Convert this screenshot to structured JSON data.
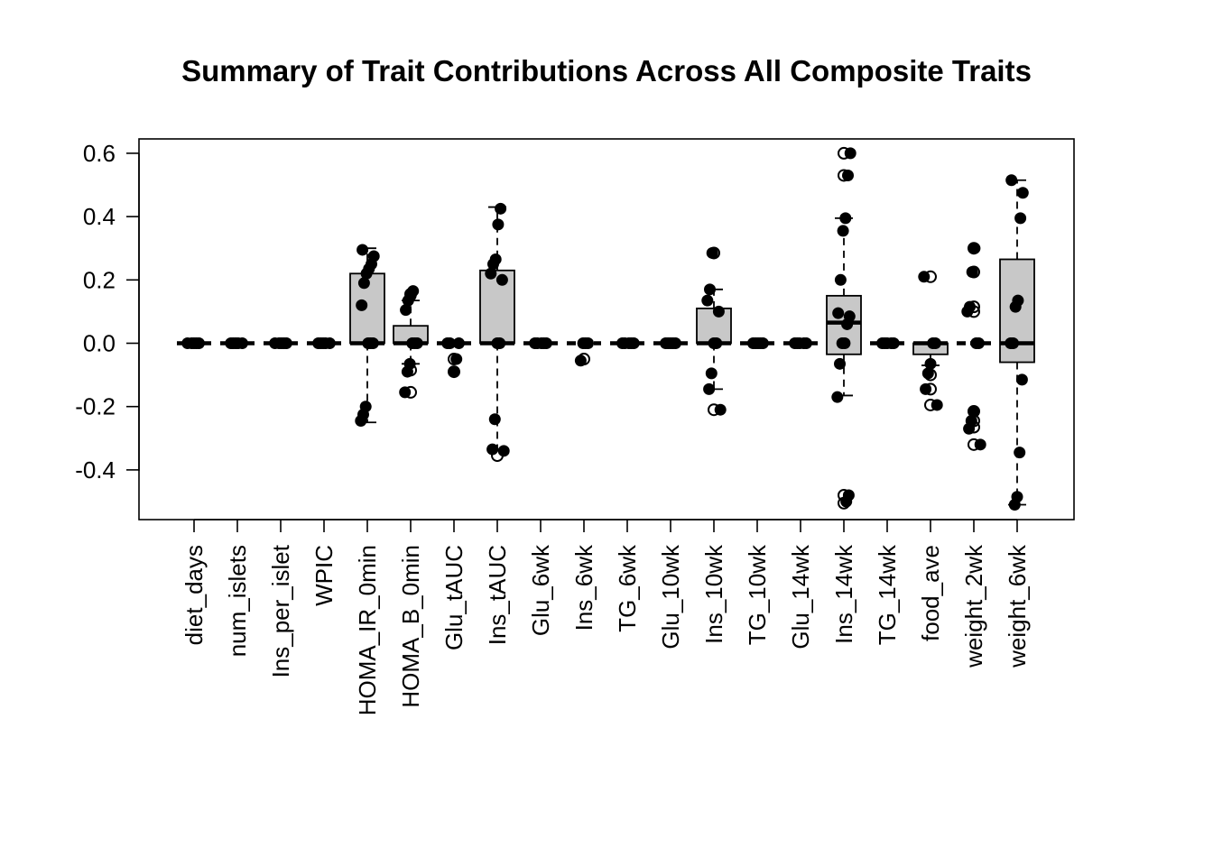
{
  "chart_data": {
    "type": "boxplot",
    "title": "Summary of Trait Contributions Across All Composite Traits",
    "xlabel": "",
    "ylabel": "",
    "ylim": [
      -0.55,
      0.63
    ],
    "yticks": [
      -0.4,
      -0.2,
      0.0,
      0.2,
      0.4,
      0.6
    ],
    "ytick_labels": [
      "-0.4",
      "-0.2",
      "0.0",
      "0.2",
      "0.4",
      "0.6"
    ],
    "grid": false,
    "legend": "none",
    "colors": {
      "box_fill": "#c8c8c8",
      "stroke": "#000000",
      "points": "#000000"
    },
    "categories": [
      "diet_days",
      "num_islets",
      "Ins_per_islet",
      "WPIC",
      "HOMA_IR_0min",
      "HOMA_B_0min",
      "Glu_tAUC",
      "Ins_tAUC",
      "Glu_6wk",
      "Ins_6wk",
      "TG_6wk",
      "Glu_10wk",
      "Ins_10wk",
      "TG_10wk",
      "Glu_14wk",
      "Ins_14wk",
      "TG_14wk",
      "food_ave",
      "weight_2wk",
      "weight_6wk"
    ],
    "boxes": [
      {
        "q1": 0,
        "median": 0,
        "q3": 0,
        "whisker_low": 0,
        "whisker_high": 0,
        "outliers": []
      },
      {
        "q1": 0,
        "median": 0,
        "q3": 0,
        "whisker_low": 0,
        "whisker_high": 0,
        "outliers": []
      },
      {
        "q1": 0,
        "median": 0,
        "q3": 0,
        "whisker_low": 0,
        "whisker_high": 0,
        "outliers": []
      },
      {
        "q1": 0,
        "median": 0,
        "q3": 0,
        "whisker_low": 0,
        "whisker_high": 0,
        "outliers": []
      },
      {
        "q1": 0,
        "median": 0,
        "q3": 0.22,
        "whisker_low": -0.25,
        "whisker_high": 0.3,
        "outliers": []
      },
      {
        "q1": 0,
        "median": 0,
        "q3": 0.055,
        "whisker_low": -0.065,
        "whisker_high": 0.135,
        "outliers": [
          -0.085,
          -0.155,
          0.155
        ]
      },
      {
        "q1": 0,
        "median": 0,
        "q3": 0,
        "whisker_low": 0,
        "whisker_high": 0,
        "outliers": [
          -0.05,
          -0.09
        ]
      },
      {
        "q1": 0,
        "median": 0,
        "q3": 0.23,
        "whisker_low": -0.335,
        "whisker_high": 0.43,
        "outliers": [
          -0.355
        ]
      },
      {
        "q1": 0,
        "median": 0,
        "q3": 0,
        "whisker_low": 0,
        "whisker_high": 0,
        "outliers": []
      },
      {
        "q1": 0,
        "median": 0,
        "q3": 0,
        "whisker_low": 0,
        "whisker_high": 0,
        "outliers": [
          -0.05
        ]
      },
      {
        "q1": 0,
        "median": 0,
        "q3": 0,
        "whisker_low": 0,
        "whisker_high": 0,
        "outliers": []
      },
      {
        "q1": 0,
        "median": 0,
        "q3": 0,
        "whisker_low": 0,
        "whisker_high": 0,
        "outliers": []
      },
      {
        "q1": 0,
        "median": 0,
        "q3": 0.11,
        "whisker_low": -0.145,
        "whisker_high": 0.17,
        "outliers": [
          -0.21,
          0.285
        ]
      },
      {
        "q1": 0,
        "median": 0,
        "q3": 0,
        "whisker_low": 0,
        "whisker_high": 0,
        "outliers": []
      },
      {
        "q1": 0,
        "median": 0,
        "q3": 0,
        "whisker_low": 0,
        "whisker_high": 0,
        "outliers": []
      },
      {
        "q1": -0.035,
        "median": 0.065,
        "q3": 0.15,
        "whisker_low": -0.165,
        "whisker_high": 0.395,
        "outliers": [
          0.53,
          0.6,
          -0.48,
          -0.505
        ]
      },
      {
        "q1": 0,
        "median": 0,
        "q3": 0,
        "whisker_low": 0,
        "whisker_high": 0,
        "outliers": []
      },
      {
        "q1": -0.035,
        "median": 0,
        "q3": 0,
        "whisker_low": -0.07,
        "whisker_high": 0,
        "outliers": [
          -0.1,
          -0.145,
          -0.195,
          0.21
        ]
      },
      {
        "q1": 0,
        "median": 0,
        "q3": 0,
        "whisker_low": 0,
        "whisker_high": 0,
        "outliers": [
          0.1,
          0.115,
          0.225,
          0.3,
          -0.215,
          -0.245,
          -0.265,
          -0.32
        ]
      },
      {
        "q1": -0.06,
        "median": 0,
        "q3": 0.265,
        "whisker_low": -0.51,
        "whisker_high": 0.515,
        "outliers": []
      }
    ],
    "points": [
      [
        0,
        0,
        0,
        0,
        0
      ],
      [
        0,
        0,
        0,
        0,
        0
      ],
      [
        0,
        0,
        0,
        0,
        0
      ],
      [
        0,
        0,
        0,
        0,
        0
      ],
      [
        0.295,
        0.275,
        0.25,
        0.235,
        0.22,
        0.19,
        0.12,
        0,
        0,
        0,
        -0.2,
        -0.225,
        -0.245
      ],
      [
        0.165,
        0.15,
        0.135,
        0.105,
        0,
        0,
        0,
        -0.065,
        -0.09,
        -0.155
      ],
      [
        0,
        0,
        0,
        -0.05,
        -0.09
      ],
      [
        0.425,
        0.375,
        0.265,
        0.25,
        0.22,
        0.2,
        0,
        0,
        -0.24,
        -0.335,
        -0.34
      ],
      [
        0,
        0,
        0,
        0,
        0
      ],
      [
        0,
        0,
        0,
        -0.055
      ],
      [
        0,
        0,
        0,
        0,
        0
      ],
      [
        0,
        0,
        0,
        0,
        0
      ],
      [
        0.285,
        0.17,
        0.135,
        0.1,
        0,
        0,
        -0.095,
        -0.145,
        -0.21
      ],
      [
        0,
        0,
        0,
        0,
        0
      ],
      [
        0,
        0,
        0,
        0,
        0
      ],
      [
        0.6,
        0.53,
        0.395,
        0.355,
        0.2,
        0.095,
        0.085,
        0.06,
        0,
        0,
        -0.065,
        -0.17,
        -0.48,
        -0.5
      ],
      [
        0,
        0,
        0,
        0,
        0
      ],
      [
        0.21,
        0,
        0,
        -0.065,
        -0.095,
        -0.145,
        -0.195
      ],
      [
        0.3,
        0.225,
        0.115,
        0.1,
        0,
        0,
        -0.215,
        -0.245,
        -0.27,
        -0.32
      ],
      [
        0.515,
        0.475,
        0.395,
        0.135,
        0.115,
        0,
        0,
        -0.115,
        -0.345,
        -0.485,
        -0.51
      ]
    ]
  }
}
